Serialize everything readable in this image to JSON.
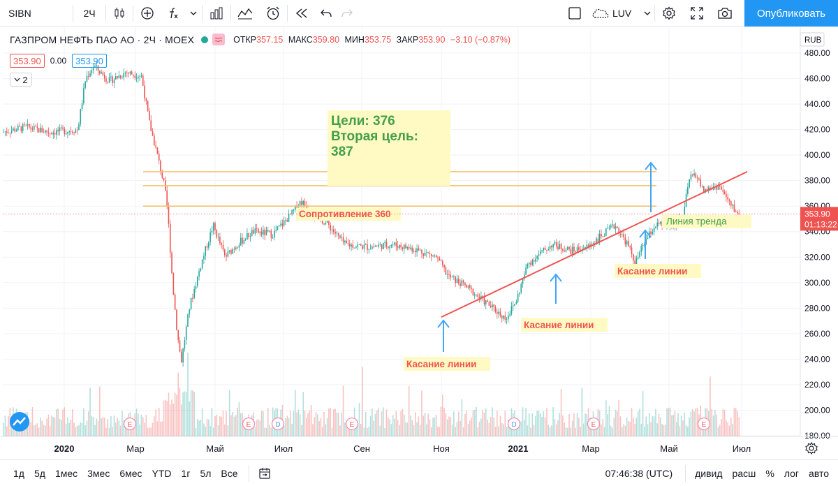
{
  "toolbar": {
    "symbol": "SIBN",
    "interval": "2Ч",
    "layout_name": "LUV",
    "publish_label": "Опубликовать",
    "icons": [
      "candles-icon",
      "add-indicator-icon",
      "fx-icon",
      "chevron-down-icon",
      "bars-chart-icon",
      "indicators-icon",
      "alert-clock-icon",
      "replay-icon",
      "undo-icon",
      "redo-icon",
      "fullscreen-square-icon",
      "cloud-icon",
      "gear-icon",
      "expand-icon",
      "camera-icon"
    ]
  },
  "legend": {
    "title": "ГАЗПРОМ НЕФТЬ ПАО АО · 2Ч · MOEX",
    "open_label": "ОТКР",
    "open": "357.15",
    "high_label": "МАКС",
    "high": "359.80",
    "low_label": "МИН",
    "low": "353.75",
    "close_label": "ЗАКР",
    "close": "353.90",
    "change": "−3.10 (−0.87%)",
    "bid": "353.90",
    "spread": "0.00",
    "ask": "353.90",
    "indicators_count": "2"
  },
  "currency": "RUB",
  "price_tag": {
    "price": "353.90",
    "countdown": "01:13:22"
  },
  "bottom": {
    "ranges": [
      "1д",
      "5д",
      "1мес",
      "3мес",
      "6мес",
      "YTD",
      "1г",
      "5л",
      "Все"
    ],
    "time": "07:46:38 (UTC)",
    "options": [
      "дивид",
      "расш",
      "%",
      "лог",
      "авто"
    ]
  },
  "colors": {
    "up": "#26a69a",
    "down": "#ef5350",
    "publish": "#2196f3",
    "trendline": "#ef5350",
    "resistance": "#f5c16c",
    "annotation_arrow": "#42a5f5"
  },
  "chart_data": {
    "type": "candlestick",
    "symbol": "SIBN",
    "ylim": [
      180,
      490
    ],
    "yticks": [
      180,
      200,
      220,
      240,
      260,
      280,
      300,
      320,
      340,
      360,
      380,
      400,
      420,
      440,
      460,
      480
    ],
    "xticks": [
      "2020",
      "Мар",
      "Май",
      "Июл",
      "Сен",
      "Ноя",
      "2021",
      "Мар",
      "Май",
      "Июл"
    ],
    "path": [
      {
        "t": 0.0,
        "p": 418
      },
      {
        "t": 0.03,
        "p": 422
      },
      {
        "t": 0.06,
        "p": 418
      },
      {
        "t": 0.095,
        "p": 420
      },
      {
        "t": 0.105,
        "p": 460
      },
      {
        "t": 0.115,
        "p": 470
      },
      {
        "t": 0.135,
        "p": 458
      },
      {
        "t": 0.155,
        "p": 465
      },
      {
        "t": 0.175,
        "p": 462
      },
      {
        "t": 0.185,
        "p": 425
      },
      {
        "t": 0.195,
        "p": 400
      },
      {
        "t": 0.204,
        "p": 375
      },
      {
        "t": 0.208,
        "p": 355
      },
      {
        "t": 0.214,
        "p": 300
      },
      {
        "t": 0.22,
        "p": 260
      },
      {
        "t": 0.225,
        "p": 238
      },
      {
        "t": 0.235,
        "p": 280
      },
      {
        "t": 0.25,
        "p": 315
      },
      {
        "t": 0.265,
        "p": 345
      },
      {
        "t": 0.28,
        "p": 320
      },
      {
        "t": 0.295,
        "p": 330
      },
      {
        "t": 0.315,
        "p": 340
      },
      {
        "t": 0.34,
        "p": 338
      },
      {
        "t": 0.365,
        "p": 355
      },
      {
        "t": 0.375,
        "p": 364
      },
      {
        "t": 0.39,
        "p": 355
      },
      {
        "t": 0.41,
        "p": 345
      },
      {
        "t": 0.43,
        "p": 330
      },
      {
        "t": 0.46,
        "p": 328
      },
      {
        "t": 0.49,
        "p": 330
      },
      {
        "t": 0.52,
        "p": 326
      },
      {
        "t": 0.545,
        "p": 320
      },
      {
        "t": 0.56,
        "p": 305
      },
      {
        "t": 0.58,
        "p": 298
      },
      {
        "t": 0.6,
        "p": 288
      },
      {
        "t": 0.62,
        "p": 278
      },
      {
        "t": 0.632,
        "p": 272
      },
      {
        "t": 0.645,
        "p": 285
      },
      {
        "t": 0.66,
        "p": 315
      },
      {
        "t": 0.69,
        "p": 330
      },
      {
        "t": 0.715,
        "p": 325
      },
      {
        "t": 0.735,
        "p": 328
      },
      {
        "t": 0.755,
        "p": 338
      },
      {
        "t": 0.77,
        "p": 345
      },
      {
        "t": 0.785,
        "p": 330
      },
      {
        "t": 0.795,
        "p": 315
      },
      {
        "t": 0.805,
        "p": 330
      },
      {
        "t": 0.82,
        "p": 345
      },
      {
        "t": 0.84,
        "p": 345
      },
      {
        "t": 0.855,
        "p": 352
      },
      {
        "t": 0.862,
        "p": 380
      },
      {
        "t": 0.87,
        "p": 386
      },
      {
        "t": 0.88,
        "p": 372
      },
      {
        "t": 0.9,
        "p": 376
      },
      {
        "t": 0.915,
        "p": 360
      },
      {
        "t": 0.925,
        "p": 353.9
      }
    ],
    "resistance_lines": [
      {
        "price": 387,
        "label": ""
      },
      {
        "price": 376,
        "label": ""
      },
      {
        "price": 360,
        "label": "Сопротивление 360"
      }
    ],
    "trendline_label": "Линия тренда",
    "target_note": {
      "line1": "Цели: 376",
      "line2": "Вторая цель:",
      "line3": "387"
    },
    "touch_labels": [
      "Касание линии",
      "Касание линии",
      "Касание линии"
    ],
    "last_price": 353.9
  }
}
